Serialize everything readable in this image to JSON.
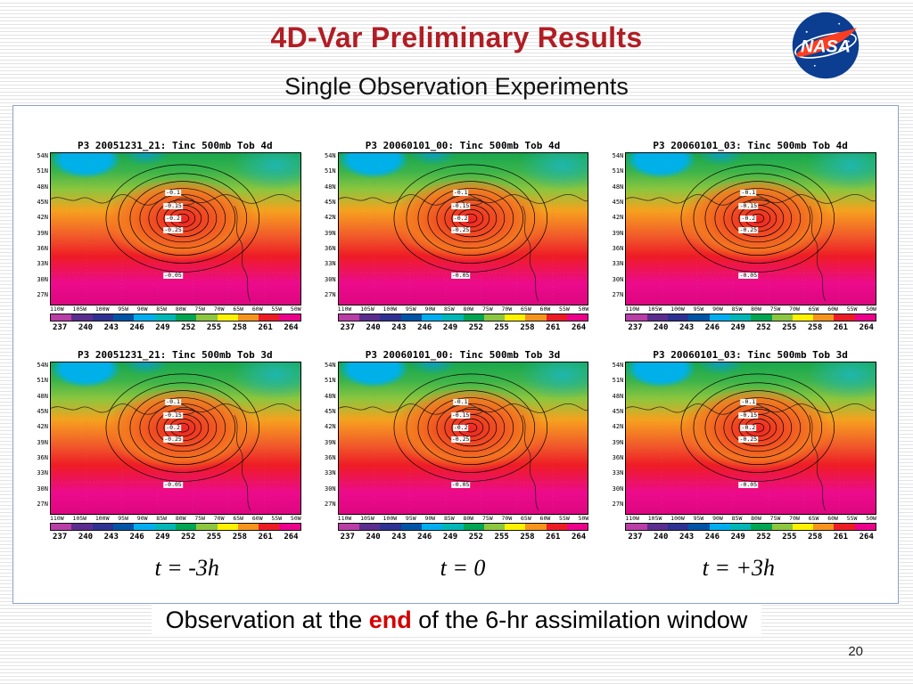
{
  "slide": {
    "title": "4D-Var Preliminary Results",
    "subtitle": "Single Observation Experiments",
    "page_number": "20",
    "caption_pre": "Observation at the ",
    "caption_highlight": "end",
    "caption_post": " of the 6-hr assimilation window"
  },
  "nasa_logo": {
    "text": "NASA"
  },
  "time_labels": [
    "t = -3h",
    "t = 0",
    "t = +3h"
  ],
  "panels": [
    {
      "title": "P3 20051231_21: Tinc 500mb Tob 4d"
    },
    {
      "title": "P3 20060101_00: Tinc 500mb Tob 4d"
    },
    {
      "title": "P3 20060101_03: Tinc 500mb Tob 4d"
    },
    {
      "title": "P3 20051231_21: Tinc 500mb Tob 3d"
    },
    {
      "title": "P3 20060101_00: Tinc 500mb Tob 3d"
    },
    {
      "title": "P3 20060101_03: Tinc 500mb Tob 3d"
    }
  ],
  "map": {
    "lat_labels": [
      "54N",
      "51N",
      "48N",
      "45N",
      "42N",
      "39N",
      "36N",
      "33N",
      "30N",
      "27N"
    ],
    "lon_labels": [
      "110W",
      "105W",
      "100W",
      "95W",
      "90W",
      "85W",
      "80W",
      "75W",
      "70W",
      "65W",
      "60W",
      "55W",
      "50W"
    ],
    "colorbar_values": [
      "237",
      "240",
      "243",
      "246",
      "249",
      "252",
      "255",
      "258",
      "261",
      "264"
    ],
    "colorbar_colors": [
      "#b93ea6",
      "#5b2d8e",
      "#2e3192",
      "#0054a6",
      "#00aeef",
      "#00b7b7",
      "#00a651",
      "#8dc63f",
      "#fff200",
      "#f7941d",
      "#ed1c24",
      "#ec008c"
    ],
    "contour_labels": [
      "-0.1",
      "-0.15",
      "-0.2",
      "-0.25",
      "-0.05"
    ]
  }
}
